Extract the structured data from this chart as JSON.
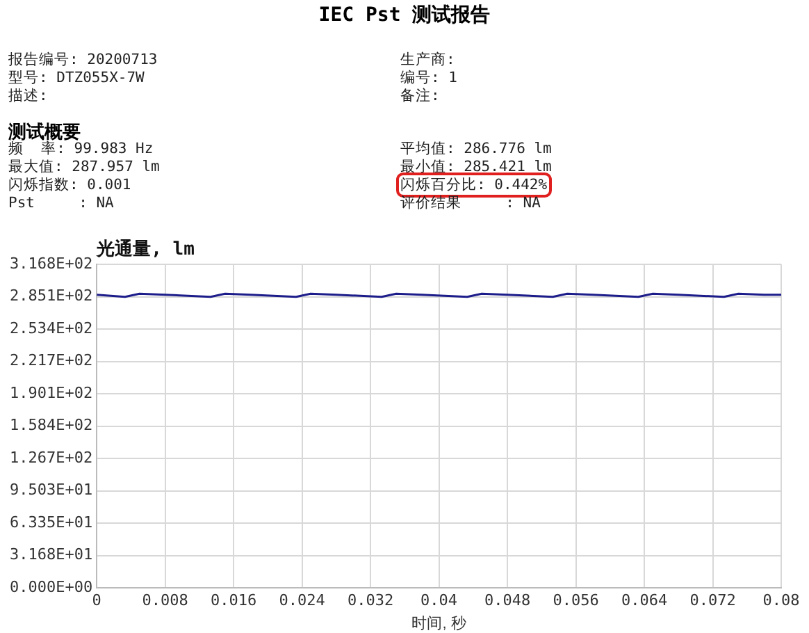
{
  "chart_data": {
    "type": "line",
    "title": "IEC Pst 测试报告",
    "subtitle": "测试概要",
    "ylabel": "光通量, lm",
    "xlabel": "时间, 秒",
    "annotations": [
      "报告编号: 20200713",
      "生产商:",
      "型号: DTZ055X-7W",
      "编号: 1",
      "描述:",
      "备注:",
      "频  率: 99.983 Hz",
      "平均值: 286.776 lm",
      "最大值: 287.957 lm",
      "最小值: 285.421 lm",
      "闪烁指数: 0.001",
      "闪烁百分比: 0.442%",
      "Pst     : NA",
      "评价结果     : NA"
    ],
    "x": [
      0,
      0.0033,
      0.005,
      0.008,
      0.0133,
      0.015,
      0.018,
      0.0233,
      0.025,
      0.028,
      0.0333,
      0.035,
      0.038,
      0.0433,
      0.045,
      0.048,
      0.0533,
      0.055,
      0.058,
      0.0633,
      0.065,
      0.068,
      0.0733,
      0.075,
      0.078,
      0.08
    ],
    "series": [
      {
        "color": "#1c1c8a",
        "values": [
          287,
          285,
          288,
          287,
          285,
          288,
          287,
          285,
          288,
          287,
          285,
          288,
          287,
          285,
          288,
          287,
          285,
          288,
          287,
          285,
          288,
          287,
          285,
          288,
          287,
          287
        ]
      }
    ],
    "xlim": [
      0,
      0.08
    ],
    "xticks": [
      0,
      0.008,
      0.016,
      0.024,
      0.032,
      0.04,
      0.048,
      0.056,
      0.064,
      0.072,
      0.08
    ],
    "ylim": [
      0,
      316.8
    ],
    "yticks": [
      {
        "value": 0,
        "label": "0.000E+00"
      },
      {
        "value": 31.68,
        "label": "3.168E+01"
      },
      {
        "value": 63.35,
        "label": "6.335E+01"
      },
      {
        "value": 95.03,
        "label": "9.503E+01"
      },
      {
        "value": 126.7,
        "label": "1.267E+02"
      },
      {
        "value": 158.4,
        "label": "1.584E+02"
      },
      {
        "value": 190.1,
        "label": "1.901E+02"
      },
      {
        "value": 221.7,
        "label": "2.217E+02"
      },
      {
        "value": 253.4,
        "label": "2.534E+02"
      },
      {
        "value": 285.1,
        "label": "2.851E+02"
      },
      {
        "value": 316.8,
        "label": "3.168E+02"
      }
    ],
    "grid": true,
    "legend": false,
    "marker": "none",
    "line_style": "solid"
  }
}
